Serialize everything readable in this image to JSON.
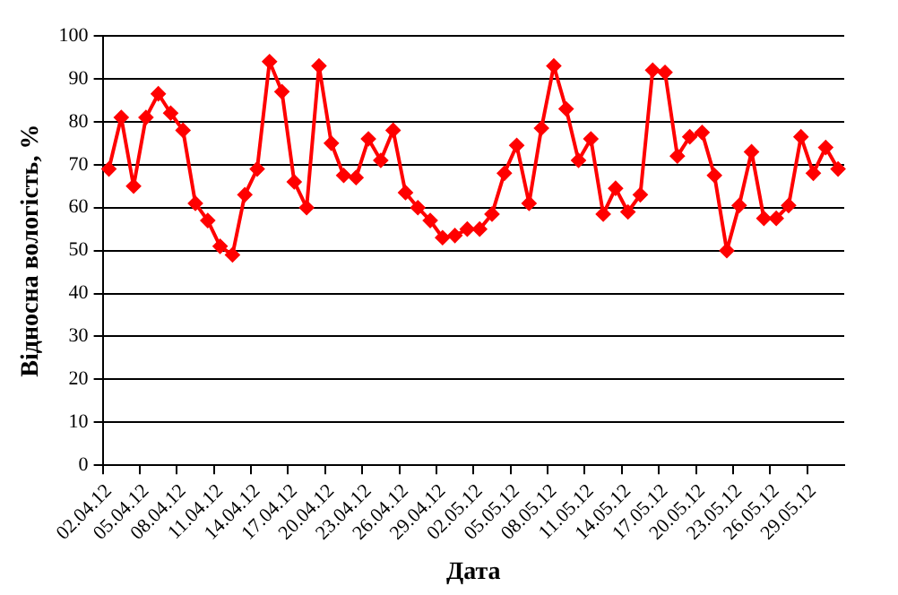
{
  "chart_data": {
    "type": "line",
    "xlabel": "Дата",
    "ylabel": "Відносна вологість, %",
    "categories": [
      "02.04.12",
      null,
      null,
      "05.04.12",
      null,
      null,
      "08.04.12",
      null,
      null,
      "11.04.12",
      null,
      null,
      "14.04.12",
      null,
      null,
      "17.04.12",
      null,
      null,
      "20.04.12",
      null,
      null,
      "23.04.12",
      null,
      null,
      "26.04.12",
      null,
      null,
      "29.04.12",
      null,
      null,
      "02.05.12",
      null,
      null,
      "05.05.12",
      null,
      null,
      "08.05.12",
      null,
      null,
      "11.05.12",
      null,
      null,
      "14.05.12",
      null,
      null,
      "17.05.12",
      null,
      null,
      "20.05.12",
      null,
      null,
      "23.05.12",
      null,
      null,
      "26.05.12",
      null,
      null,
      "29.05.12",
      null,
      null
    ],
    "series": [
      {
        "color": "#ff0000",
        "values": [
          69,
          81,
          65,
          81,
          86.5,
          82,
          78,
          61,
          57,
          51,
          49,
          63,
          69,
          94,
          87,
          66,
          60,
          93,
          75,
          67.5,
          67,
          76,
          71,
          78,
          63.5,
          60,
          57,
          53,
          53.5,
          55,
          55,
          58.5,
          68,
          74.5,
          61,
          78.5,
          93,
          83,
          71,
          76,
          58.5,
          64.5,
          59,
          63,
          92,
          91.5,
          72,
          76.5,
          77.5,
          67.5,
          50,
          60.5,
          73,
          57.5,
          57.5,
          60.5,
          76.5,
          68,
          74,
          69
        ]
      }
    ],
    "ylim": [
      0,
      100
    ],
    "yticks": [
      0,
      10,
      20,
      30,
      40,
      50,
      60,
      70,
      80,
      90,
      100
    ],
    "grid": "y",
    "legend": false,
    "marker": "diamond",
    "line_style": "solid"
  }
}
